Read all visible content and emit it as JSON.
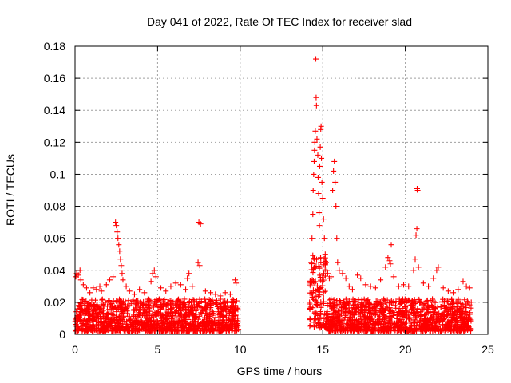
{
  "chart_data": {
    "type": "scatter",
    "title": "Day 041 of 2022, Rate Of TEC Index for receiver slad",
    "xlabel": "GPS time / hours",
    "ylabel": "ROTI / TECUs",
    "xlim": [
      0,
      25
    ],
    "ylim": [
      0,
      0.18
    ],
    "x_ticks": [
      0,
      5,
      10,
      15,
      20,
      25
    ],
    "x_tick_labels": [
      "0",
      "5",
      "10",
      "15",
      "20",
      "25"
    ],
    "y_ticks": [
      0,
      0.02,
      0.04,
      0.06,
      0.08,
      0.1,
      0.12,
      0.14,
      0.16,
      0.18
    ],
    "y_tick_labels": [
      "0",
      "0.02",
      "0.04",
      "0.06",
      "0.08",
      "0.1",
      "0.12",
      "0.14",
      "0.16",
      "0.18"
    ],
    "grid": true,
    "marker": "plus",
    "color": "#ff0000",
    "series": [
      {
        "points": [
          [
            0.05,
            0.036
          ],
          [
            0.1,
            0.038
          ],
          [
            0.2,
            0.037
          ],
          [
            0.3,
            0.04
          ],
          [
            0.35,
            0.034
          ],
          [
            0.5,
            0.031
          ],
          [
            0.7,
            0.029
          ],
          [
            0.9,
            0.026
          ],
          [
            1.1,
            0.029
          ],
          [
            1.3,
            0.028
          ],
          [
            1.5,
            0.03
          ],
          [
            1.6,
            0.027
          ],
          [
            1.9,
            0.031
          ],
          [
            2.1,
            0.034
          ],
          [
            2.3,
            0.036
          ],
          [
            2.45,
            0.07
          ],
          [
            2.5,
            0.068
          ],
          [
            2.55,
            0.064
          ],
          [
            2.6,
            0.06
          ],
          [
            2.65,
            0.056
          ],
          [
            2.7,
            0.052
          ],
          [
            2.75,
            0.047
          ],
          [
            2.8,
            0.043
          ],
          [
            2.85,
            0.038
          ],
          [
            2.9,
            0.034
          ],
          [
            3.1,
            0.03
          ],
          [
            3.3,
            0.027
          ],
          [
            3.6,
            0.025
          ],
          [
            3.9,
            0.028
          ],
          [
            4.2,
            0.026
          ],
          [
            4.6,
            0.033
          ],
          [
            4.7,
            0.038
          ],
          [
            4.8,
            0.04
          ],
          [
            4.9,
            0.036
          ],
          [
            5.2,
            0.029
          ],
          [
            5.5,
            0.027
          ],
          [
            5.8,
            0.03
          ],
          [
            6.1,
            0.032
          ],
          [
            6.4,
            0.031
          ],
          [
            6.7,
            0.028
          ],
          [
            6.8,
            0.035
          ],
          [
            6.9,
            0.038
          ],
          [
            7.1,
            0.03
          ],
          [
            7.45,
            0.045
          ],
          [
            7.55,
            0.043
          ],
          [
            7.5,
            0.07
          ],
          [
            7.6,
            0.069
          ],
          [
            7.9,
            0.027
          ],
          [
            8.2,
            0.026
          ],
          [
            8.5,
            0.025
          ],
          [
            8.8,
            0.024
          ],
          [
            9.1,
            0.026
          ],
          [
            9.4,
            0.025
          ],
          [
            9.7,
            0.034
          ],
          [
            9.75,
            0.032
          ],
          [
            14.2,
            0.02
          ],
          [
            14.25,
            0.032
          ],
          [
            14.3,
            0.045
          ],
          [
            14.35,
            0.06
          ],
          [
            14.4,
            0.075
          ],
          [
            14.42,
            0.09
          ],
          [
            14.45,
            0.1
          ],
          [
            14.48,
            0.108
          ],
          [
            14.5,
            0.115
          ],
          [
            14.52,
            0.12
          ],
          [
            14.55,
            0.127
          ],
          [
            14.58,
            0.172
          ],
          [
            14.6,
            0.148
          ],
          [
            14.62,
            0.143
          ],
          [
            14.65,
            0.122
          ],
          [
            14.7,
            0.112
          ],
          [
            14.72,
            0.098
          ],
          [
            14.75,
            0.088
          ],
          [
            14.78,
            0.076
          ],
          [
            14.8,
            0.068
          ],
          [
            14.82,
            0.105
          ],
          [
            14.85,
            0.117
          ],
          [
            14.88,
            0.128
          ],
          [
            14.9,
            0.13
          ],
          [
            14.92,
            0.11
          ],
          [
            14.95,
            0.095
          ],
          [
            15.0,
            0.085
          ],
          [
            15.05,
            0.072
          ],
          [
            15.1,
            0.06
          ],
          [
            15.15,
            0.05
          ],
          [
            15.2,
            0.045
          ],
          [
            15.25,
            0.04
          ],
          [
            15.3,
            0.038
          ],
          [
            15.4,
            0.035
          ],
          [
            15.5,
            0.036
          ],
          [
            15.6,
            0.09
          ],
          [
            15.65,
            0.102
          ],
          [
            15.7,
            0.108
          ],
          [
            15.75,
            0.095
          ],
          [
            15.8,
            0.08
          ],
          [
            15.85,
            0.06
          ],
          [
            15.9,
            0.045
          ],
          [
            16.0,
            0.04
          ],
          [
            16.2,
            0.038
          ],
          [
            16.4,
            0.035
          ],
          [
            16.6,
            0.03
          ],
          [
            16.8,
            0.028
          ],
          [
            17.1,
            0.037
          ],
          [
            17.3,
            0.035
          ],
          [
            17.6,
            0.031
          ],
          [
            17.9,
            0.03
          ],
          [
            18.2,
            0.029
          ],
          [
            18.5,
            0.034
          ],
          [
            18.8,
            0.042
          ],
          [
            18.95,
            0.048
          ],
          [
            19.05,
            0.046
          ],
          [
            19.1,
            0.044
          ],
          [
            19.15,
            0.056
          ],
          [
            19.3,
            0.036
          ],
          [
            19.6,
            0.03
          ],
          [
            19.9,
            0.031
          ],
          [
            20.2,
            0.03
          ],
          [
            20.5,
            0.04
          ],
          [
            20.6,
            0.047
          ],
          [
            20.65,
            0.062
          ],
          [
            20.7,
            0.066
          ],
          [
            20.72,
            0.091
          ],
          [
            20.75,
            0.09
          ],
          [
            20.8,
            0.042
          ],
          [
            21.1,
            0.032
          ],
          [
            21.4,
            0.03
          ],
          [
            21.7,
            0.035
          ],
          [
            21.9,
            0.04
          ],
          [
            22.0,
            0.042
          ],
          [
            22.3,
            0.029
          ],
          [
            22.6,
            0.027
          ],
          [
            22.9,
            0.026
          ],
          [
            23.2,
            0.028
          ],
          [
            23.5,
            0.033
          ],
          [
            23.7,
            0.03
          ],
          [
            23.9,
            0.029
          ]
        ]
      }
    ],
    "density_bands": [
      {
        "x_start": 0.0,
        "x_end": 9.9,
        "y_min": 0.002,
        "y_max": 0.022
      },
      {
        "x_start": 14.2,
        "x_end": 15.2,
        "y_min": 0.004,
        "y_max": 0.05
      },
      {
        "x_start": 15.2,
        "x_end": 24.0,
        "y_min": 0.002,
        "y_max": 0.022
      }
    ]
  }
}
